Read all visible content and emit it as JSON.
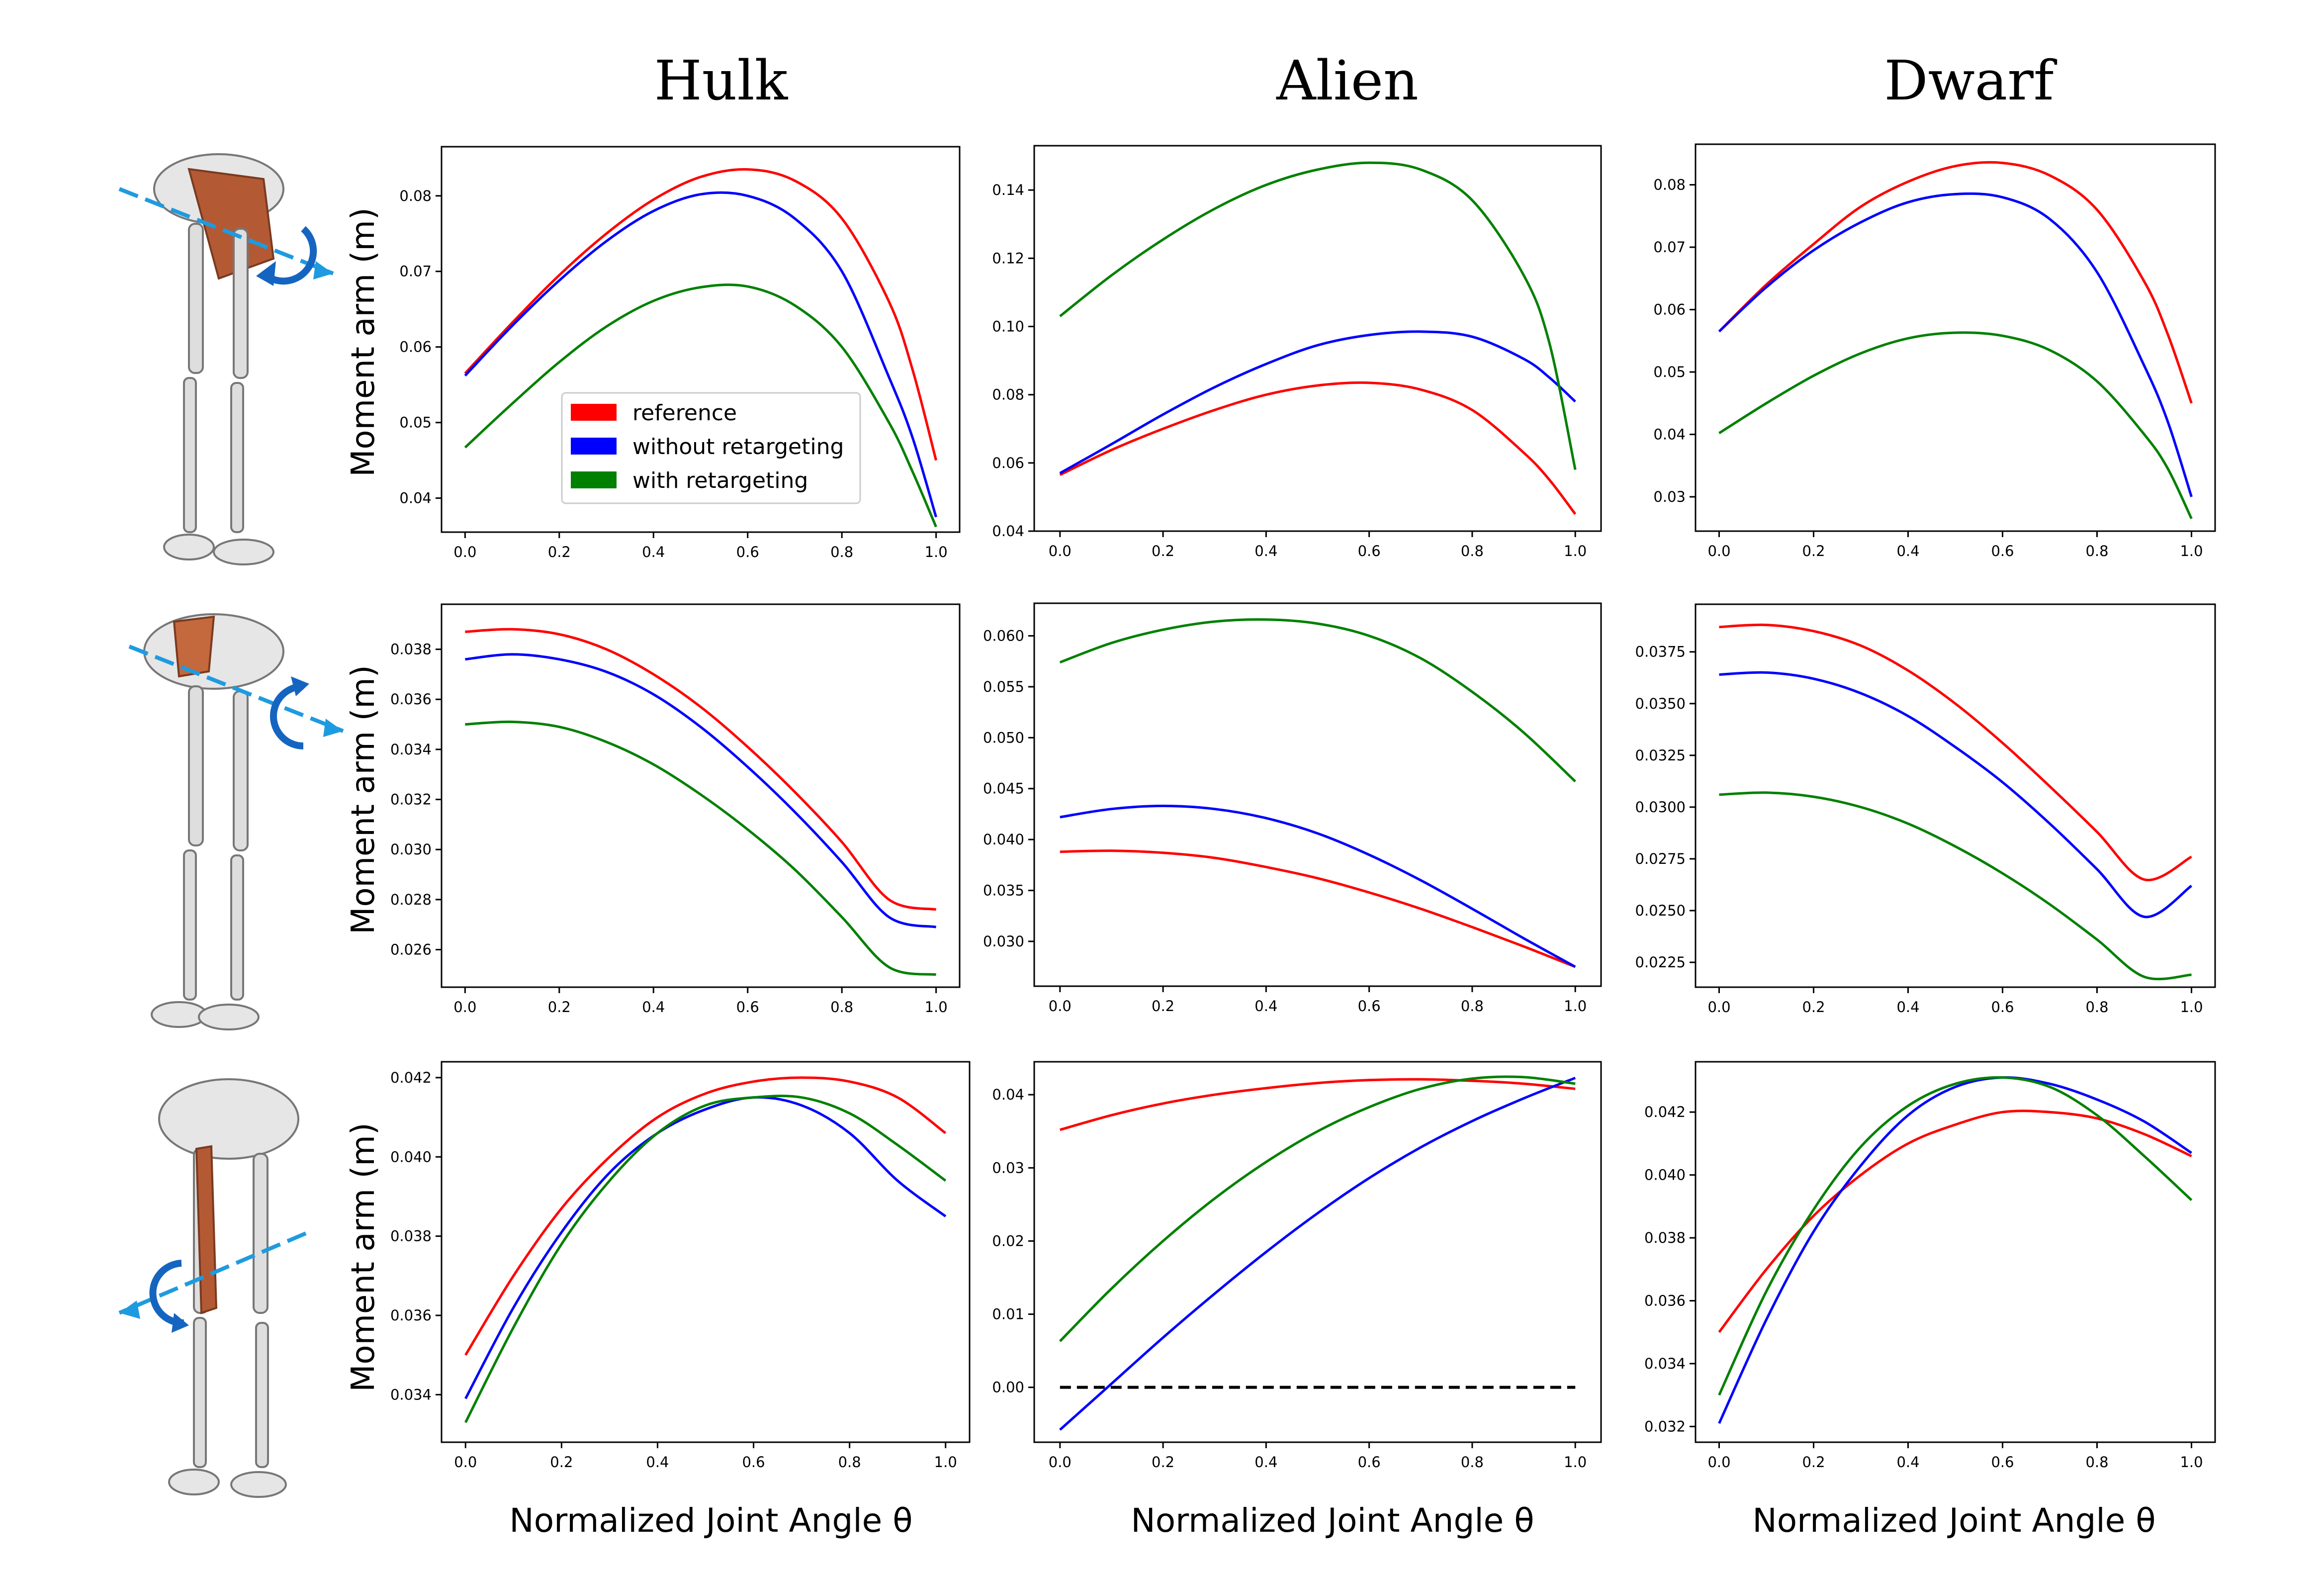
{
  "column_titles": [
    "Hulk",
    "Alien",
    "Dwarf"
  ],
  "ylabel": "Moment arm (m)",
  "xlabel": "Normalized Joint Angle θ",
  "legend": {
    "entries": [
      {
        "label": "reference",
        "color": "#ff0000"
      },
      {
        "label": "without retargeting",
        "color": "#0000ff"
      },
      {
        "label": "with retargeting",
        "color": "#008000"
      }
    ]
  },
  "icons": [
    "hip-flexion-muscle-skeleton-icon",
    "hip-abduction-muscle-skeleton-icon",
    "knee-flexion-muscle-skeleton-icon"
  ],
  "series_colors": {
    "reference": "#ff0000",
    "without_retargeting": "#0000ff",
    "with_retargeting": "#008000"
  },
  "chart_data": [
    {
      "type": "line",
      "row": 1,
      "col": 1,
      "title": "",
      "xlim": [
        0,
        1
      ],
      "ylim": [
        0.0355,
        0.0865
      ],
      "xticks": [
        0.0,
        0.2,
        0.4,
        0.6,
        0.8,
        1.0
      ],
      "xtick_labels": [
        "0.0",
        "0.2",
        "0.4",
        "0.6",
        "0.8",
        "1.0"
      ],
      "yticks": [
        0.04,
        0.05,
        0.06,
        0.07,
        0.08
      ],
      "ytick_labels": [
        "0.04",
        "0.05",
        "0.06",
        "0.07",
        "0.08"
      ],
      "x": [
        0.0,
        0.1,
        0.2,
        0.3,
        0.4,
        0.5,
        0.6,
        0.7,
        0.8,
        0.9,
        0.95,
        1.0
      ],
      "series": [
        {
          "key": "reference",
          "values": [
            0.0565,
            0.0632,
            0.0695,
            0.075,
            0.0795,
            0.0825,
            0.0835,
            0.082,
            0.077,
            0.066,
            0.057,
            0.045
          ]
        },
        {
          "key": "without_retargeting",
          "values": [
            0.0562,
            0.0628,
            0.0688,
            0.074,
            0.078,
            0.0802,
            0.08,
            0.077,
            0.07,
            0.056,
            0.048,
            0.0375
          ]
        },
        {
          "key": "with_retargeting",
          "values": [
            0.0467,
            0.0525,
            0.058,
            0.0627,
            0.0661,
            0.0679,
            0.068,
            0.0655,
            0.06,
            0.05,
            0.0435,
            0.0362
          ]
        }
      ],
      "legend_shown": true
    },
    {
      "type": "line",
      "row": 1,
      "col": 2,
      "title": "",
      "xlim": [
        0,
        1
      ],
      "ylim": [
        0.04,
        0.153
      ],
      "xticks": [
        0.0,
        0.2,
        0.4,
        0.6,
        0.8,
        1.0
      ],
      "xtick_labels": [
        "0.0",
        "0.2",
        "0.4",
        "0.6",
        "0.8",
        "1.0"
      ],
      "yticks": [
        0.04,
        0.06,
        0.08,
        0.1,
        0.12,
        0.14
      ],
      "ytick_labels": [
        "0.04",
        "0.06",
        "0.08",
        "0.10",
        "0.12",
        "0.14"
      ],
      "x": [
        0.0,
        0.1,
        0.2,
        0.3,
        0.4,
        0.5,
        0.6,
        0.7,
        0.8,
        0.9,
        0.95,
        1.0
      ],
      "series": [
        {
          "key": "reference",
          "values": [
            0.0565,
            0.0638,
            0.07,
            0.0755,
            0.08,
            0.0827,
            0.0835,
            0.0815,
            0.0755,
            0.063,
            0.055,
            0.045
          ]
        },
        {
          "key": "without_retargeting",
          "values": [
            0.057,
            0.0655,
            0.0742,
            0.0822,
            0.089,
            0.0945,
            0.0975,
            0.0985,
            0.097,
            0.0905,
            0.085,
            0.078
          ]
        },
        {
          "key": "with_retargeting",
          "values": [
            0.103,
            0.115,
            0.1255,
            0.1345,
            0.1415,
            0.146,
            0.148,
            0.146,
            0.137,
            0.115,
            0.095,
            0.058
          ]
        }
      ]
    },
    {
      "type": "line",
      "row": 1,
      "col": 3,
      "title": "",
      "xlim": [
        0,
        1
      ],
      "ylim": [
        0.0245,
        0.0865
      ],
      "xticks": [
        0.0,
        0.2,
        0.4,
        0.6,
        0.8,
        1.0
      ],
      "xtick_labels": [
        "0.0",
        "0.2",
        "0.4",
        "0.6",
        "0.8",
        "1.0"
      ],
      "yticks": [
        0.03,
        0.04,
        0.05,
        0.06,
        0.07,
        0.08
      ],
      "ytick_labels": [
        "0.03",
        "0.04",
        "0.05",
        "0.06",
        "0.07",
        "0.08"
      ],
      "x": [
        0.0,
        0.1,
        0.2,
        0.3,
        0.4,
        0.5,
        0.6,
        0.7,
        0.8,
        0.9,
        0.95,
        1.0
      ],
      "series": [
        {
          "key": "reference",
          "values": [
            0.0565,
            0.064,
            0.0705,
            0.0765,
            0.0805,
            0.083,
            0.0835,
            0.0815,
            0.076,
            0.0645,
            0.056,
            0.045
          ]
        },
        {
          "key": "without_retargeting",
          "values": [
            0.0565,
            0.0636,
            0.0695,
            0.074,
            0.0772,
            0.0785,
            0.078,
            0.0745,
            0.066,
            0.051,
            0.042,
            0.03
          ]
        },
        {
          "key": "with_retargeting",
          "values": [
            0.0402,
            0.045,
            0.0494,
            0.053,
            0.0554,
            0.0563,
            0.0558,
            0.0535,
            0.0485,
            0.04,
            0.0345,
            0.0265
          ]
        }
      ]
    },
    {
      "type": "line",
      "row": 2,
      "col": 1,
      "title": "",
      "xlim": [
        0,
        1
      ],
      "ylim": [
        0.0245,
        0.0398
      ],
      "xticks": [
        0.0,
        0.2,
        0.4,
        0.6,
        0.8,
        1.0
      ],
      "xtick_labels": [
        "0.0",
        "0.2",
        "0.4",
        "0.6",
        "0.8",
        "1.0"
      ],
      "yticks": [
        0.026,
        0.028,
        0.03,
        0.032,
        0.034,
        0.036,
        0.038
      ],
      "ytick_labels": [
        "0.026",
        "0.028",
        "0.030",
        "0.032",
        "0.034",
        "0.036",
        "0.038"
      ],
      "x": [
        0.0,
        0.1,
        0.2,
        0.3,
        0.4,
        0.5,
        0.6,
        0.7,
        0.8,
        0.9,
        1.0
      ],
      "series": [
        {
          "key": "reference",
          "values": [
            0.0387,
            0.0388,
            0.0386,
            0.038,
            0.037,
            0.0357,
            0.0341,
            0.0323,
            0.0303,
            0.028,
            0.0276
          ]
        },
        {
          "key": "without_retargeting",
          "values": [
            0.0376,
            0.0378,
            0.0376,
            0.0371,
            0.0362,
            0.0349,
            0.0333,
            0.0315,
            0.0295,
            0.0273,
            0.0269
          ]
        },
        {
          "key": "with_retargeting",
          "values": [
            0.035,
            0.0351,
            0.0349,
            0.0343,
            0.0334,
            0.0322,
            0.0308,
            0.0292,
            0.0273,
            0.0253,
            0.025
          ]
        }
      ]
    },
    {
      "type": "line",
      "row": 2,
      "col": 2,
      "title": "",
      "xlim": [
        0,
        1
      ],
      "ylim": [
        0.0256,
        0.0632
      ],
      "xticks": [
        0.0,
        0.2,
        0.4,
        0.6,
        0.8,
        1.0
      ],
      "xtick_labels": [
        "0.0",
        "0.2",
        "0.4",
        "0.6",
        "0.8",
        "1.0"
      ],
      "yticks": [
        0.03,
        0.035,
        0.04,
        0.045,
        0.05,
        0.055,
        0.06
      ],
      "ytick_labels": [
        "0.030",
        "0.035",
        "0.040",
        "0.045",
        "0.050",
        "0.055",
        "0.060"
      ],
      "x": [
        0.0,
        0.1,
        0.2,
        0.3,
        0.4,
        0.5,
        0.6,
        0.7,
        0.8,
        0.9,
        1.0
      ],
      "series": [
        {
          "key": "reference",
          "values": [
            0.0388,
            0.0389,
            0.0387,
            0.0382,
            0.0373,
            0.0362,
            0.0348,
            0.0332,
            0.0314,
            0.0295,
            0.0275
          ]
        },
        {
          "key": "without_retargeting",
          "values": [
            0.0422,
            0.043,
            0.0433,
            0.043,
            0.0421,
            0.0406,
            0.0385,
            0.036,
            0.0332,
            0.0303,
            0.0275
          ]
        },
        {
          "key": "with_retargeting",
          "values": [
            0.0574,
            0.0593,
            0.0606,
            0.0614,
            0.0616,
            0.0612,
            0.06,
            0.0578,
            0.0545,
            0.0505,
            0.0457
          ]
        }
      ]
    },
    {
      "type": "line",
      "row": 2,
      "col": 3,
      "title": "",
      "xlim": [
        0,
        1
      ],
      "ylim": [
        0.0213,
        0.0398
      ],
      "xticks": [
        0.0,
        0.2,
        0.4,
        0.6,
        0.8,
        1.0
      ],
      "xtick_labels": [
        "0.0",
        "0.2",
        "0.4",
        "0.6",
        "0.8",
        "1.0"
      ],
      "yticks": [
        0.0225,
        0.025,
        0.0275,
        0.03,
        0.0325,
        0.035,
        0.0375
      ],
      "ytick_labels": [
        "0.0225",
        "0.0250",
        "0.0275",
        "0.0300",
        "0.0325",
        "0.0350",
        "0.0375"
      ],
      "x": [
        0.0,
        0.1,
        0.2,
        0.3,
        0.4,
        0.5,
        0.6,
        0.7,
        0.8,
        0.9,
        1.0
      ],
      "series": [
        {
          "key": "reference",
          "values": [
            0.0387,
            0.0388,
            0.0385,
            0.0378,
            0.0366,
            0.035,
            0.0331,
            0.031,
            0.0288,
            0.0265,
            0.0276
          ]
        },
        {
          "key": "without_retargeting",
          "values": [
            0.0364,
            0.0365,
            0.0362,
            0.0355,
            0.0344,
            0.0329,
            0.0312,
            0.0292,
            0.027,
            0.0247,
            0.0262
          ]
        },
        {
          "key": "with_retargeting",
          "values": [
            0.0306,
            0.0307,
            0.0305,
            0.03,
            0.0292,
            0.0281,
            0.0268,
            0.0253,
            0.0236,
            0.0218,
            0.0219
          ]
        }
      ]
    },
    {
      "type": "line",
      "row": 3,
      "col": 1,
      "title": "",
      "xlim": [
        0,
        1
      ],
      "ylim": [
        0.0328,
        0.0424
      ],
      "xticks": [
        0.0,
        0.2,
        0.4,
        0.6,
        0.8,
        1.0
      ],
      "xtick_labels": [
        "0.0",
        "0.2",
        "0.4",
        "0.6",
        "0.8",
        "1.0"
      ],
      "yticks": [
        0.034,
        0.036,
        0.038,
        0.04,
        0.042
      ],
      "ytick_labels": [
        "0.034",
        "0.036",
        "0.038",
        "0.040",
        "0.042"
      ],
      "x": [
        0.0,
        0.1,
        0.2,
        0.3,
        0.4,
        0.5,
        0.6,
        0.7,
        0.8,
        0.9,
        1.0
      ],
      "series": [
        {
          "key": "reference",
          "values": [
            0.035,
            0.037,
            0.0387,
            0.04,
            0.041,
            0.0416,
            0.0419,
            0.042,
            0.0419,
            0.0415,
            0.0406
          ]
        },
        {
          "key": "without_retargeting",
          "values": [
            0.0339,
            0.0362,
            0.0381,
            0.0396,
            0.0406,
            0.0412,
            0.0415,
            0.0413,
            0.0406,
            0.0394,
            0.0385
          ]
        },
        {
          "key": "with_retargeting",
          "values": [
            0.0333,
            0.0357,
            0.0378,
            0.0394,
            0.0406,
            0.0413,
            0.0415,
            0.0415,
            0.0411,
            0.0403,
            0.0394
          ]
        }
      ]
    },
    {
      "type": "line",
      "row": 3,
      "col": 2,
      "title": "",
      "xlim": [
        0,
        1
      ],
      "ylim": [
        -0.0075,
        0.0445
      ],
      "xticks": [
        0.0,
        0.2,
        0.4,
        0.6,
        0.8,
        1.0
      ],
      "xtick_labels": [
        "0.0",
        "0.2",
        "0.4",
        "0.6",
        "0.8",
        "1.0"
      ],
      "yticks": [
        0.0,
        0.01,
        0.02,
        0.03,
        0.04
      ],
      "ytick_labels": [
        "0.00",
        "0.01",
        "0.02",
        "0.03",
        "0.04"
      ],
      "x": [
        0.0,
        0.1,
        0.2,
        0.3,
        0.4,
        0.5,
        0.6,
        0.7,
        0.8,
        0.9,
        1.0
      ],
      "series": [
        {
          "key": "reference",
          "values": [
            0.0352,
            0.0372,
            0.0388,
            0.04,
            0.0409,
            0.0416,
            0.042,
            0.0421,
            0.0419,
            0.0415,
            0.0408
          ]
        },
        {
          "key": "without_retargeting",
          "values": [
            -0.0058,
            0.0005,
            0.0068,
            0.0128,
            0.0185,
            0.0238,
            0.0286,
            0.0328,
            0.0364,
            0.0395,
            0.0423
          ]
        },
        {
          "key": "with_retargeting",
          "values": [
            0.0063,
            0.0135,
            0.02,
            0.0258,
            0.0308,
            0.035,
            0.0383,
            0.0408,
            0.0422,
            0.0424,
            0.0415
          ]
        }
      ],
      "reference_line": {
        "y": 0.0,
        "x_range": [
          0.0,
          1.0
        ],
        "style": "dashed",
        "color": "#000000"
      }
    },
    {
      "type": "line",
      "row": 3,
      "col": 3,
      "title": "",
      "xlim": [
        0,
        1
      ],
      "ylim": [
        0.0315,
        0.0436
      ],
      "xticks": [
        0.0,
        0.2,
        0.4,
        0.6,
        0.8,
        1.0
      ],
      "xtick_labels": [
        "0.0",
        "0.2",
        "0.4",
        "0.6",
        "0.8",
        "1.0"
      ],
      "yticks": [
        0.032,
        0.034,
        0.036,
        0.038,
        0.04,
        0.042
      ],
      "ytick_labels": [
        "0.032",
        "0.034",
        "0.036",
        "0.038",
        "0.040",
        "0.042"
      ],
      "x": [
        0.0,
        0.1,
        0.2,
        0.3,
        0.4,
        0.5,
        0.6,
        0.7,
        0.8,
        0.9,
        1.0
      ],
      "series": [
        {
          "key": "reference",
          "values": [
            0.035,
            0.037,
            0.0387,
            0.04,
            0.041,
            0.0416,
            0.042,
            0.042,
            0.0418,
            0.0413,
            0.0406
          ]
        },
        {
          "key": "without_retargeting",
          "values": [
            0.0321,
            0.0354,
            0.0382,
            0.0403,
            0.0419,
            0.0428,
            0.0431,
            0.0429,
            0.0424,
            0.0417,
            0.0407
          ]
        },
        {
          "key": "with_retargeting",
          "values": [
            0.033,
            0.0363,
            0.0389,
            0.0409,
            0.0422,
            0.0429,
            0.0431,
            0.0428,
            0.0419,
            0.0406,
            0.0392
          ]
        }
      ]
    }
  ]
}
